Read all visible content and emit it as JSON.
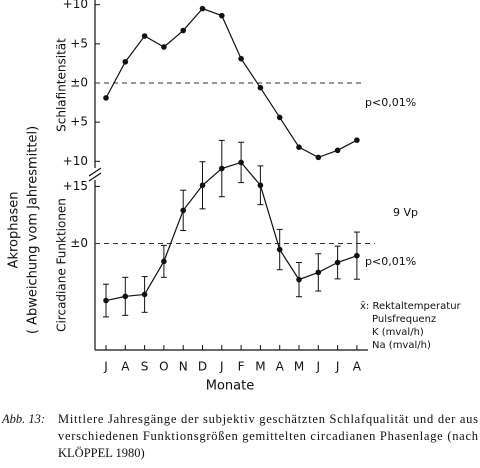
{
  "chart_data": [
    {
      "type": "line",
      "ylabel": "Schlafintensität",
      "values": [
        -1.9,
        2.7,
        6.0,
        4.6,
        6.7,
        9.5,
        8.6,
        3.1,
        -0.6,
        -4.4,
        -8.2,
        -9.5,
        -8.6,
        -7.3
      ],
      "ylim": [
        -10.6,
        10.6
      ],
      "yticks": [
        {
          "value": 10,
          "label": "+10"
        },
        {
          "value": 5,
          "label": "+5"
        },
        {
          "value": 0,
          "label": "±0"
        },
        {
          "value": -5,
          "label": "+5"
        },
        {
          "value": -10,
          "label": "+10"
        }
      ],
      "annotations": [
        "p<0,01%"
      ],
      "color": "#111111"
    },
    {
      "type": "line",
      "ylabel": "Circadiane Funktionen",
      "xlabel": "Monate",
      "categories": [
        "J",
        "A",
        "S",
        "O",
        "N",
        "D",
        "J",
        "F",
        "M",
        "A",
        "M",
        "J",
        "J",
        "A"
      ],
      "values": [
        -15.0,
        -13.9,
        -13.4,
        -4.7,
        8.7,
        15.3,
        19.7,
        21.3,
        15.3,
        -1.6,
        -9.5,
        -7.6,
        -5.0,
        -3.2
      ],
      "errors": [
        4.3,
        5.0,
        4.7,
        4.2,
        5.3,
        6.2,
        7.4,
        5.3,
        5.1,
        5.3,
        4.5,
        4.9,
        4.3,
        6.2
      ],
      "ylim": [
        -28,
        18
      ],
      "yticks": [
        {
          "value": 15,
          "label": "+15"
        },
        {
          "value": 0,
          "label": "±0"
        }
      ],
      "annotations": [
        "p<0,01%",
        "9 Vp"
      ],
      "legend": [
        "x̄: Rektaltemperatur",
        "Pulsfrequenz",
        "K (mval/h)",
        "Na (mval/h)"
      ],
      "color": "#111111"
    }
  ],
  "ylabel_lines": [
    "Akrophasen",
    "( Abweichung vom Jahresmittel)"
  ],
  "caption": {
    "label": "Abb. 13:",
    "lines": [
      "Mittlere Jahresgänge der subjektiv geschätzten Schlafqualität und der aus",
      "verschiedenen Funktionsgrößen gemittelten circadianen Phasenlage (nach",
      "KLÖPPEL 1980)"
    ]
  }
}
